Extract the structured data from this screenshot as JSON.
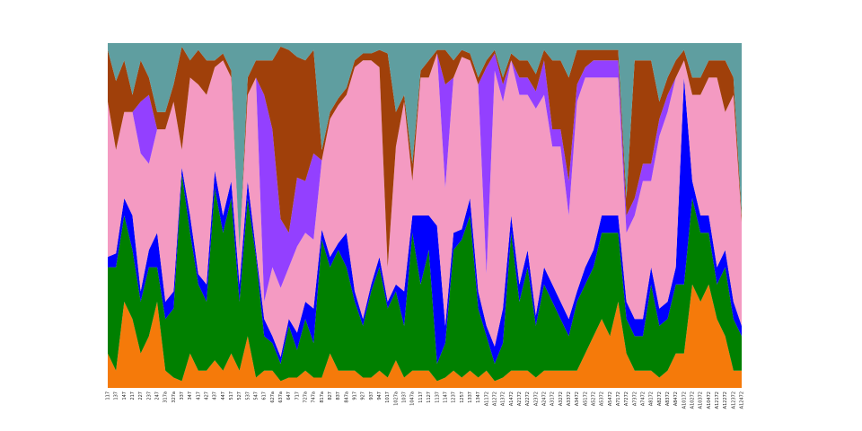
{
  "chart_data": {
    "type": "stacked_area",
    "categories": [
      "117",
      "137",
      "147",
      "217",
      "227",
      "237",
      "247",
      "317a",
      "327a",
      "337",
      "347",
      "417",
      "427",
      "437",
      "447",
      "517",
      "527",
      "537",
      "547",
      "617",
      "627a",
      "637a",
      "647",
      "717",
      "727a",
      "747a",
      "817a",
      "827",
      "837",
      "847a",
      "917",
      "927",
      "937",
      "947",
      "1017",
      "1027a",
      "1037",
      "1047a",
      "1117",
      "1127",
      "1137",
      "1147",
      "1237",
      "1257",
      "1337",
      "1347",
      "A1172",
      "A1272",
      "A1372",
      "A1472",
      "A2172",
      "A2272",
      "A2372",
      "A2472",
      "A3172",
      "A3272",
      "A3372",
      "A3472",
      "A5172",
      "A5272",
      "A5372",
      "A5472",
      "A7172",
      "A7272",
      "A7372",
      "A7472",
      "A8172",
      "A8272",
      "A8372",
      "A8472",
      "A10172",
      "A10272",
      "A10372",
      "A10472",
      "A12172",
      "A12272",
      "A12372",
      "A12472"
    ],
    "ylim": [
      0,
      100
    ],
    "series": [
      {
        "color": "#f57a0a",
        "values": [
          10,
          5,
          25,
          20,
          10,
          15,
          25,
          5,
          3,
          2,
          10,
          5,
          5,
          8,
          5,
          10,
          5,
          15,
          3,
          5,
          5,
          2,
          3,
          3,
          5,
          3,
          3,
          10,
          5,
          5,
          5,
          3,
          3,
          5,
          3,
          8,
          3,
          5,
          5,
          5,
          2,
          3,
          5,
          3,
          5,
          3,
          5,
          2,
          3,
          5,
          5,
          5,
          3,
          5,
          5,
          5,
          5,
          5,
          10,
          15,
          20,
          15,
          25,
          10,
          5,
          5,
          5,
          3,
          5,
          10,
          10,
          30,
          25,
          30,
          20,
          15,
          5,
          5
        ]
      },
      {
        "color": "#008000",
        "values": [
          25,
          30,
          25,
          20,
          15,
          20,
          10,
          15,
          20,
          60,
          35,
          25,
          20,
          50,
          40,
          45,
          20,
          40,
          35,
          10,
          8,
          5,
          15,
          8,
          15,
          10,
          40,
          25,
          35,
          30,
          20,
          15,
          25,
          30,
          20,
          20,
          15,
          40,
          25,
          35,
          5,
          10,
          35,
          40,
          45,
          20,
          10,
          5,
          10,
          40,
          20,
          30,
          15,
          25,
          20,
          15,
          10,
          20,
          20,
          20,
          25,
          30,
          20,
          10,
          10,
          10,
          25,
          15,
          15,
          20,
          20,
          25,
          20,
          15,
          10,
          20,
          15,
          10
        ]
      },
      {
        "color": "#0000ff",
        "values": [
          3,
          4,
          5,
          10,
          3,
          5,
          10,
          5,
          5,
          2,
          5,
          3,
          5,
          5,
          5,
          5,
          5,
          5,
          2,
          5,
          2,
          2,
          2,
          5,
          5,
          10,
          3,
          3,
          2,
          10,
          3,
          2,
          2,
          3,
          2,
          2,
          10,
          5,
          20,
          10,
          40,
          5,
          5,
          3,
          5,
          5,
          3,
          5,
          10,
          5,
          5,
          5,
          3,
          5,
          5,
          5,
          5,
          3,
          5,
          5,
          5,
          5,
          5,
          5,
          5,
          5,
          5,
          5,
          5,
          5,
          60,
          5,
          5,
          5,
          5,
          5,
          5,
          3
        ]
      },
      {
        "color": "#f49ac2",
        "values": [
          45,
          30,
          25,
          30,
          40,
          25,
          30,
          50,
          55,
          5,
          40,
          55,
          55,
          30,
          45,
          30,
          10,
          25,
          50,
          5,
          20,
          20,
          15,
          25,
          20,
          20,
          20,
          40,
          40,
          40,
          65,
          75,
          65,
          55,
          10,
          40,
          55,
          10,
          40,
          40,
          50,
          40,
          45,
          50,
          40,
          60,
          15,
          80,
          60,
          45,
          55,
          45,
          60,
          50,
          40,
          45,
          30,
          55,
          55,
          50,
          40,
          40,
          40,
          20,
          30,
          40,
          25,
          50,
          55,
          55,
          5,
          25,
          35,
          40,
          55,
          40,
          60,
          30
        ]
      },
      {
        "color": "#9340ff",
        "values": [
          0,
          0,
          0,
          0,
          15,
          20,
          0,
          0,
          0,
          0,
          0,
          0,
          0,
          0,
          0,
          0,
          0,
          0,
          0,
          60,
          40,
          20,
          10,
          20,
          15,
          25,
          0,
          0,
          0,
          0,
          0,
          0,
          0,
          0,
          0,
          0,
          0,
          0,
          0,
          0,
          0,
          30,
          0,
          0,
          0,
          0,
          60,
          5,
          5,
          0,
          5,
          5,
          5,
          10,
          5,
          5,
          10,
          5,
          3,
          5,
          5,
          5,
          5,
          5,
          5,
          5,
          5,
          5,
          5,
          0,
          0,
          0,
          0,
          0,
          0,
          0,
          0,
          0
        ]
      },
      {
        "color": "#a0400a",
        "values": [
          15,
          20,
          15,
          5,
          12,
          5,
          5,
          5,
          5,
          30,
          5,
          10,
          10,
          2,
          2,
          2,
          0,
          5,
          5,
          10,
          20,
          50,
          53,
          35,
          35,
          30,
          3,
          2,
          2,
          2,
          2,
          2,
          2,
          5,
          62,
          10,
          2,
          5,
          2,
          5,
          1,
          10,
          5,
          2,
          2,
          2,
          2,
          1,
          2,
          2,
          5,
          5,
          5,
          3,
          20,
          20,
          30,
          10,
          5,
          3,
          3,
          3,
          3,
          5,
          40,
          30,
          30,
          5,
          5,
          5,
          3,
          5,
          5,
          5,
          5,
          15,
          5,
          2
        ]
      },
      {
        "color": "#5f9ea0",
        "values": [
          2,
          11,
          5,
          15,
          5,
          10,
          20,
          20,
          12,
          1,
          5,
          2,
          5,
          5,
          3,
          8,
          60,
          10,
          5,
          5,
          5,
          1,
          2,
          4,
          5,
          2,
          31,
          20,
          16,
          13,
          5,
          3,
          3,
          2,
          3,
          20,
          15,
          35,
          8,
          5,
          2,
          2,
          5,
          2,
          3,
          10,
          5,
          2,
          10,
          3,
          5,
          5,
          9,
          2,
          5,
          5,
          10,
          2,
          2,
          2,
          2,
          2,
          2,
          45,
          5,
          5,
          5,
          17,
          10,
          5,
          2,
          10,
          10,
          5,
          5,
          5,
          10,
          50
        ]
      }
    ]
  }
}
